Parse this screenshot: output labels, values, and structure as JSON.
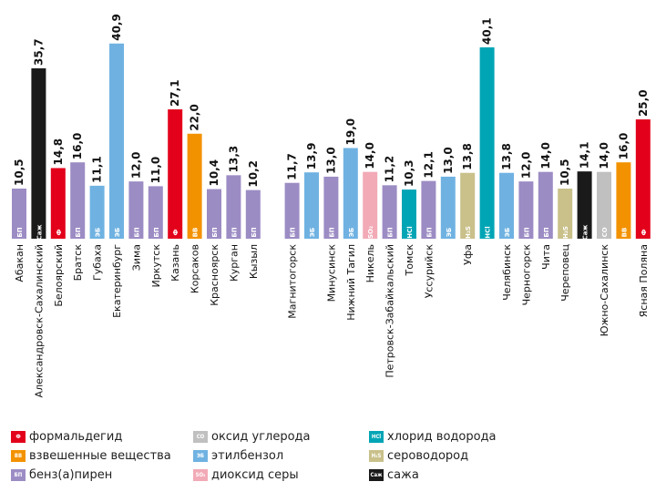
{
  "chart_data": {
    "type": "bar",
    "title": "",
    "xlabel": "",
    "ylabel": "",
    "ylim": [
      0,
      42
    ],
    "grid": false,
    "legend_placement": "bottom",
    "categories": [
      "Абакан",
      "Александровск-Сахалинский",
      "Белоярский",
      "Братск",
      "Губаха",
      "Екатеринбург",
      "Зима",
      "Иркутск",
      "Казань",
      "Корсаков",
      "Красноярск",
      "Курган",
      "Кызыл",
      "Магнитогорск",
      "Минусинск",
      "Нижний Тагил",
      "Никель",
      "Петровск-Забайкальский",
      "Томск",
      "Уссурийск",
      "Уфа",
      "Уфа",
      "Челябинск",
      "Черногорск",
      "Чита",
      "Череповец",
      "Южно-Сахалинск",
      "Южно-Сахалинск",
      "Южно-Сахалинск",
      "Ясная Поляна"
    ],
    "value_labels": [
      "10,5",
      "35,7",
      "14,8",
      "16,0",
      "11,1",
      "40,9",
      "12,0",
      "11,0",
      "27,1",
      "22,0",
      "10,4",
      "13,3",
      "10,2",
      "11,7",
      "13,9",
      "13,0",
      "19,0",
      "14,0",
      "11,2",
      "10,3",
      "12,1",
      "13,0",
      "13,8",
      "40,1",
      "13,8",
      "12,0",
      "14,0",
      "10,5",
      "14,1",
      "14,0",
      "16,0",
      "25,0"
    ],
    "bars": [
      {
        "category": "Абакан",
        "value": 10.5,
        "label": "10,5",
        "substance": "bp"
      },
      {
        "category": "Александровск-Сахалинский",
        "value": 35.7,
        "label": "35,7",
        "substance": "soot"
      },
      {
        "category": "Белоярский",
        "value": 14.8,
        "label": "14,8",
        "substance": "f"
      },
      {
        "category": "Братск",
        "value": 16.0,
        "label": "16,0",
        "substance": "bp"
      },
      {
        "category": "Губаха",
        "value": 11.1,
        "label": "11,1",
        "substance": "eb"
      },
      {
        "category": "Екатеринбург",
        "value": 40.9,
        "label": "40,9",
        "substance": "eb"
      },
      {
        "category": "Зима",
        "value": 12.0,
        "label": "12,0",
        "substance": "bp"
      },
      {
        "category": "Иркутск",
        "value": 11.0,
        "label": "11,0",
        "substance": "bp"
      },
      {
        "category": "Казань",
        "value": 27.1,
        "label": "27,1",
        "substance": "f"
      },
      {
        "category": "Корсаков",
        "value": 22.0,
        "label": "22,0",
        "substance": "vv"
      },
      {
        "category": "Красноярск",
        "value": 10.4,
        "label": "10,4",
        "substance": "bp"
      },
      {
        "category": "Курган",
        "value": 13.3,
        "label": "13,3",
        "substance": "bp"
      },
      {
        "category": "Кызыл",
        "value": 10.2,
        "label": "10,2",
        "substance": "bp"
      },
      {
        "category": "",
        "value": 11.2,
        "label": "",
        "substance": "bp",
        "hidden": true
      },
      {
        "category": "Магнитогорск",
        "value": 11.7,
        "label": "11,7",
        "substance": "bp"
      },
      {
        "category": "",
        "value": 13.9,
        "label": "13,9",
        "substance": "eb"
      },
      {
        "category": "Минусинск",
        "value": 13.0,
        "label": "13,0",
        "substance": "bp"
      },
      {
        "category": "Нижний Тагил",
        "value": 19.0,
        "label": "19,0",
        "substance": "eb"
      },
      {
        "category": "Никель",
        "value": 14.0,
        "label": "14,0",
        "substance": "so2"
      },
      {
        "category": "Петровск-Забайкальский",
        "value": 11.2,
        "label": "11,2",
        "substance": "bp"
      },
      {
        "category": "Томск",
        "value": 10.3,
        "label": "10,3",
        "substance": "hcl"
      },
      {
        "category": "Уссурийск",
        "value": 12.1,
        "label": "12,1",
        "substance": "bp"
      },
      {
        "category": "",
        "value": 13.0,
        "label": "13,0",
        "substance": "eb"
      },
      {
        "category": "Уфа",
        "value": 13.8,
        "label": "13,8",
        "substance": "h2s"
      },
      {
        "category": "",
        "value": 40.1,
        "label": "40,1",
        "substance": "hcl"
      },
      {
        "category": "Челябинск",
        "value": 13.8,
        "label": "13,8",
        "substance": "eb"
      },
      {
        "category": "Черногорск",
        "value": 12.0,
        "label": "12,0",
        "substance": "bp"
      },
      {
        "category": "Чита",
        "value": 14.0,
        "label": "14,0",
        "substance": "bp"
      },
      {
        "category": "Череповец",
        "value": 10.5,
        "label": "10,5",
        "substance": "h2s"
      },
      {
        "category": "",
        "value": 14.1,
        "label": "14,1",
        "substance": "soot"
      },
      {
        "category": "Южно-Сахалинск",
        "value": 14.0,
        "label": "14,0",
        "substance": "co"
      },
      {
        "category": "",
        "value": 16.0,
        "label": "16,0",
        "substance": "vv"
      },
      {
        "category": "Ясная Поляна",
        "value": 25.0,
        "label": "25,0",
        "substance": "f"
      }
    ],
    "substances": {
      "f": {
        "code": "Ф",
        "name": "формальдегид",
        "color": "#e3001b"
      },
      "vv": {
        "code": "ВВ",
        "name": "взвешенные вещества",
        "color": "#f39200"
      },
      "bp": {
        "code": "БП",
        "name": "бенз(а)пирен",
        "color": "#9c8cc4"
      },
      "co": {
        "code": "CO",
        "name": "оксид углерода",
        "color": "#c0c0c0"
      },
      "eb": {
        "code": "ЭБ",
        "name": "этилбензол",
        "color": "#6fb2e2"
      },
      "so2": {
        "code": "SO₂",
        "name": "диоксид серы",
        "color": "#f2aab6"
      },
      "hcl": {
        "code": "HCl",
        "name": "хлорид водорода",
        "color": "#00a5b5"
      },
      "h2s": {
        "code": "H₂S",
        "name": "сероводород",
        "color": "#c9c08a"
      },
      "soot": {
        "code": "Cаж",
        "name": "сажа",
        "color": "#1a1a1a"
      }
    }
  },
  "legend": {
    "items": [
      {
        "key": "f"
      },
      {
        "key": "vv"
      },
      {
        "key": "bp"
      },
      {
        "key": "co"
      },
      {
        "key": "eb"
      },
      {
        "key": "so2"
      },
      {
        "key": "hcl"
      },
      {
        "key": "h2s"
      },
      {
        "key": "soot"
      }
    ]
  }
}
